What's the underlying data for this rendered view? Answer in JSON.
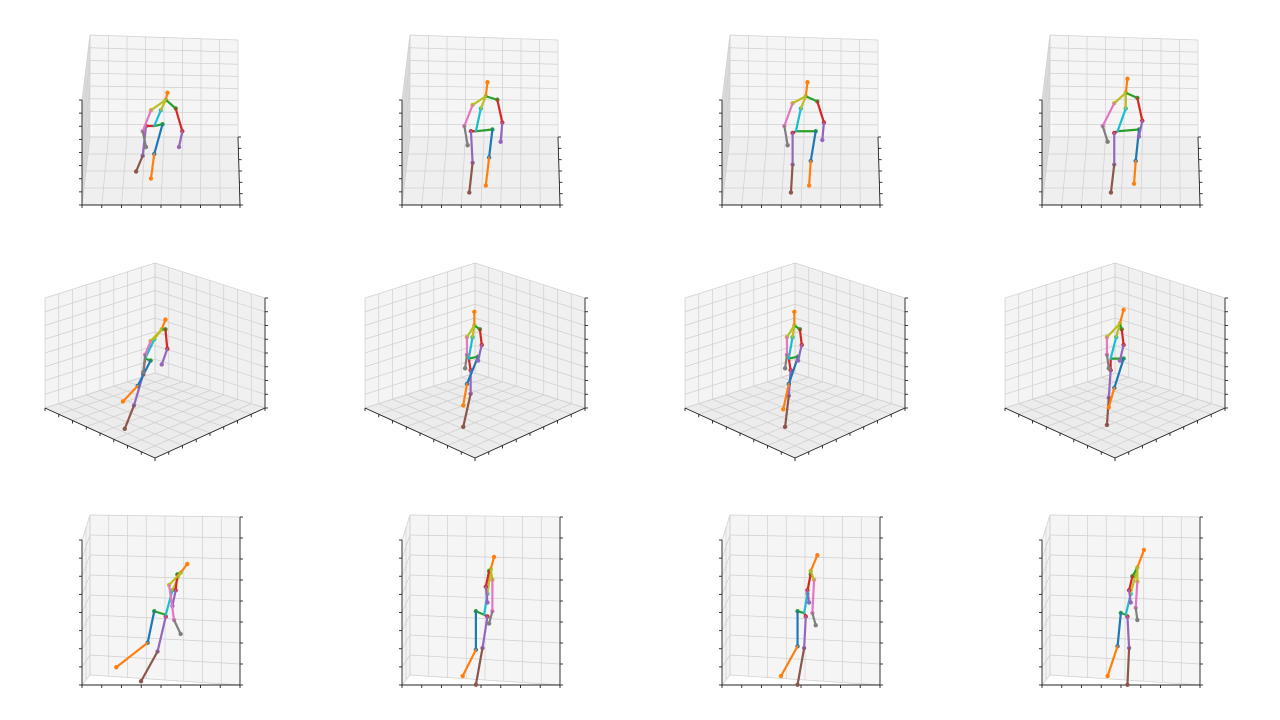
{
  "figure": {
    "rows": 3,
    "cols": 4,
    "views": [
      "front-elevated",
      "isometric",
      "side"
    ]
  },
  "chart_data": {
    "type": "3d-skeleton-grid",
    "title": "",
    "colors": {
      "pane": "#f2f2f2",
      "grid": "#cfcfcf",
      "axis": "#222222",
      "blue": "#1f77b4",
      "orange": "#ff7f0e",
      "green": "#2ca02c",
      "red": "#d62728",
      "purple": "#9467bd",
      "brown": "#8c564b",
      "pink": "#e377c2",
      "gray": "#7f7f7f",
      "olive": "#bcbd22",
      "cyan": "#17becf"
    },
    "bones": [
      {
        "from": "pelvis",
        "to": "r_hip",
        "color": "red"
      },
      {
        "from": "r_hip",
        "to": "r_knee",
        "color": "purple"
      },
      {
        "from": "r_knee",
        "to": "r_ankle",
        "color": "brown"
      },
      {
        "from": "pelvis",
        "to": "l_hip",
        "color": "green"
      },
      {
        "from": "l_hip",
        "to": "l_knee",
        "color": "blue"
      },
      {
        "from": "l_knee",
        "to": "l_ankle",
        "color": "orange"
      },
      {
        "from": "pelvis",
        "to": "spine",
        "color": "cyan"
      },
      {
        "from": "spine",
        "to": "neck",
        "color": "olive"
      },
      {
        "from": "neck",
        "to": "head",
        "color": "orange"
      },
      {
        "from": "neck",
        "to": "l_shoulder",
        "color": "green"
      },
      {
        "from": "l_shoulder",
        "to": "l_elbow",
        "color": "red"
      },
      {
        "from": "l_elbow",
        "to": "l_wrist",
        "color": "purple"
      },
      {
        "from": "neck",
        "to": "r_shoulder",
        "color": "olive"
      },
      {
        "from": "r_shoulder",
        "to": "r_elbow",
        "color": "pink"
      },
      {
        "from": "r_elbow",
        "to": "r_wrist",
        "color": "gray"
      }
    ],
    "panels": [
      {
        "row": 0,
        "col": 0,
        "view": "front-elevated",
        "joints": {
          "head": [
            0.53,
            0.33
          ],
          "neck": [
            0.52,
            0.37
          ],
          "spine": [
            0.49,
            0.43
          ],
          "pelvis": [
            0.45,
            0.52
          ],
          "l_hip": [
            0.5,
            0.51
          ],
          "l_knee": [
            0.45,
            0.68
          ],
          "l_ankle": [
            0.43,
            0.82
          ],
          "r_hip": [
            0.4,
            0.52
          ],
          "r_knee": [
            0.38,
            0.69
          ],
          "r_ankle": [
            0.34,
            0.78
          ],
          "l_shoulder": [
            0.58,
            0.42
          ],
          "l_elbow": [
            0.62,
            0.55
          ],
          "l_wrist": [
            0.6,
            0.64
          ],
          "r_shoulder": [
            0.43,
            0.43
          ],
          "r_elbow": [
            0.38,
            0.55
          ],
          "r_wrist": [
            0.4,
            0.64
          ]
        }
      },
      {
        "row": 0,
        "col": 1,
        "view": "front-elevated",
        "joints": {
          "head": [
            0.53,
            0.27
          ],
          "neck": [
            0.52,
            0.35
          ],
          "spine": [
            0.49,
            0.42
          ],
          "pelvis": [
            0.46,
            0.55
          ],
          "l_hip": [
            0.56,
            0.54
          ],
          "l_knee": [
            0.54,
            0.7
          ],
          "l_ankle": [
            0.52,
            0.86
          ],
          "r_hip": [
            0.43,
            0.55
          ],
          "r_knee": [
            0.44,
            0.73
          ],
          "r_ankle": [
            0.42,
            0.9
          ],
          "l_shoulder": [
            0.59,
            0.37
          ],
          "l_elbow": [
            0.62,
            0.5
          ],
          "l_wrist": [
            0.61,
            0.61
          ],
          "r_shoulder": [
            0.44,
            0.4
          ],
          "r_elbow": [
            0.39,
            0.52
          ],
          "r_wrist": [
            0.41,
            0.63
          ]
        }
      },
      {
        "row": 0,
        "col": 2,
        "view": "front-elevated",
        "joints": {
          "head": [
            0.53,
            0.27
          ],
          "neck": [
            0.52,
            0.35
          ],
          "spine": [
            0.49,
            0.42
          ],
          "pelvis": [
            0.46,
            0.55
          ],
          "l_hip": [
            0.58,
            0.55
          ],
          "l_knee": [
            0.55,
            0.72
          ],
          "l_ankle": [
            0.54,
            0.86
          ],
          "r_hip": [
            0.44,
            0.56
          ],
          "r_knee": [
            0.44,
            0.74
          ],
          "r_ankle": [
            0.43,
            0.9
          ],
          "l_shoulder": [
            0.59,
            0.38
          ],
          "l_elbow": [
            0.63,
            0.5
          ],
          "l_wrist": [
            0.62,
            0.6
          ],
          "r_shoulder": [
            0.44,
            0.39
          ],
          "r_elbow": [
            0.39,
            0.52
          ],
          "r_wrist": [
            0.41,
            0.63
          ]
        }
      },
      {
        "row": 0,
        "col": 3,
        "view": "front-elevated",
        "joints": {
          "head": [
            0.53,
            0.25
          ],
          "neck": [
            0.52,
            0.33
          ],
          "spine": [
            0.52,
            0.42
          ],
          "pelvis": [
            0.47,
            0.55
          ],
          "l_hip": [
            0.6,
            0.54
          ],
          "l_knee": [
            0.58,
            0.72
          ],
          "l_ankle": [
            0.57,
            0.85
          ],
          "r_hip": [
            0.45,
            0.56
          ],
          "r_knee": [
            0.45,
            0.74
          ],
          "r_ankle": [
            0.43,
            0.9
          ],
          "l_shoulder": [
            0.59,
            0.36
          ],
          "l_elbow": [
            0.62,
            0.49
          ],
          "l_wrist": [
            0.6,
            0.58
          ],
          "r_shoulder": [
            0.45,
            0.39
          ],
          "r_elbow": [
            0.38,
            0.52
          ],
          "r_wrist": [
            0.41,
            0.61
          ]
        }
      },
      {
        "row": 1,
        "col": 0,
        "view": "isometric",
        "joints": {
          "head": [
            0.57,
            0.28
          ],
          "neck": [
            0.55,
            0.33
          ],
          "spine": [
            0.51,
            0.38
          ],
          "pelvis": [
            0.46,
            0.48
          ],
          "l_hip": [
            0.49,
            0.49
          ],
          "l_knee": [
            0.42,
            0.62
          ],
          "l_ankle": [
            0.34,
            0.7
          ],
          "r_hip": [
            0.45,
            0.56
          ],
          "r_knee": [
            0.4,
            0.72
          ],
          "r_ankle": [
            0.35,
            0.84
          ],
          "l_shoulder": [
            0.57,
            0.33
          ],
          "l_elbow": [
            0.58,
            0.43
          ],
          "l_wrist": [
            0.55,
            0.51
          ],
          "r_shoulder": [
            0.49,
            0.39
          ],
          "r_elbow": [
            0.46,
            0.46
          ],
          "r_wrist": [
            0.45,
            0.55
          ]
        }
      },
      {
        "row": 1,
        "col": 1,
        "view": "isometric",
        "joints": {
          "head": [
            0.51,
            0.24
          ],
          "neck": [
            0.51,
            0.31
          ],
          "spine": [
            0.5,
            0.37
          ],
          "pelvis": [
            0.48,
            0.48
          ],
          "l_hip": [
            0.53,
            0.47
          ],
          "l_knee": [
            0.47,
            0.61
          ],
          "l_ankle": [
            0.45,
            0.72
          ],
          "r_hip": [
            0.49,
            0.54
          ],
          "r_knee": [
            0.49,
            0.66
          ],
          "r_ankle": [
            0.45,
            0.83
          ],
          "l_shoulder": [
            0.54,
            0.33
          ],
          "l_elbow": [
            0.55,
            0.41
          ],
          "l_wrist": [
            0.53,
            0.49
          ],
          "r_shoulder": [
            0.47,
            0.37
          ],
          "r_elbow": [
            0.47,
            0.46
          ],
          "r_wrist": [
            0.46,
            0.53
          ]
        }
      },
      {
        "row": 1,
        "col": 2,
        "view": "isometric",
        "joints": {
          "head": [
            0.51,
            0.24
          ],
          "neck": [
            0.51,
            0.31
          ],
          "spine": [
            0.5,
            0.37
          ],
          "pelvis": [
            0.48,
            0.48
          ],
          "l_hip": [
            0.53,
            0.47
          ],
          "l_knee": [
            0.48,
            0.61
          ],
          "l_ankle": [
            0.45,
            0.74
          ],
          "r_hip": [
            0.49,
            0.54
          ],
          "r_knee": [
            0.48,
            0.67
          ],
          "r_ankle": [
            0.46,
            0.83
          ],
          "l_shoulder": [
            0.54,
            0.33
          ],
          "l_elbow": [
            0.55,
            0.41
          ],
          "l_wrist": [
            0.53,
            0.49
          ],
          "r_shoulder": [
            0.47,
            0.37
          ],
          "r_elbow": [
            0.47,
            0.46
          ],
          "r_wrist": [
            0.46,
            0.53
          ]
        }
      },
      {
        "row": 1,
        "col": 3,
        "view": "isometric",
        "joints": {
          "head": [
            0.56,
            0.23
          ],
          "neck": [
            0.54,
            0.3
          ],
          "spine": [
            0.52,
            0.37
          ],
          "pelvis": [
            0.49,
            0.48
          ],
          "l_hip": [
            0.56,
            0.48
          ],
          "l_knee": [
            0.51,
            0.63
          ],
          "l_ankle": [
            0.48,
            0.73
          ],
          "r_hip": [
            0.49,
            0.54
          ],
          "r_knee": [
            0.48,
            0.68
          ],
          "r_ankle": [
            0.47,
            0.82
          ],
          "l_shoulder": [
            0.55,
            0.33
          ],
          "l_elbow": [
            0.56,
            0.41
          ],
          "l_wrist": [
            0.54,
            0.49
          ],
          "r_shoulder": [
            0.47,
            0.37
          ],
          "r_elbow": [
            0.47,
            0.46
          ],
          "r_wrist": [
            0.48,
            0.53
          ]
        }
      },
      {
        "row": 2,
        "col": 0,
        "view": "side",
        "joints": {
          "head": [
            0.65,
            0.28
          ],
          "neck": [
            0.61,
            0.33
          ],
          "spine": [
            0.56,
            0.43
          ],
          "pelvis": [
            0.52,
            0.57
          ],
          "l_hip": [
            0.45,
            0.55
          ],
          "l_knee": [
            0.41,
            0.73
          ],
          "l_ankle": [
            0.22,
            0.87
          ],
          "r_hip": [
            0.52,
            0.58
          ],
          "r_knee": [
            0.47,
            0.78
          ],
          "r_ankle": [
            0.37,
            0.95
          ],
          "l_shoulder": [
            0.59,
            0.34
          ],
          "l_elbow": [
            0.58,
            0.43
          ],
          "l_wrist": [
            0.56,
            0.52
          ],
          "r_shoulder": [
            0.54,
            0.4
          ],
          "r_elbow": [
            0.57,
            0.6
          ],
          "r_wrist": [
            0.61,
            0.68
          ]
        }
      },
      {
        "row": 2,
        "col": 1,
        "view": "side",
        "joints": {
          "head": [
            0.57,
            0.24
          ],
          "neck": [
            0.55,
            0.31
          ],
          "spine": [
            0.53,
            0.45
          ],
          "pelvis": [
            0.51,
            0.57
          ],
          "l_hip": [
            0.46,
            0.55
          ],
          "l_knee": [
            0.46,
            0.77
          ],
          "l_ankle": [
            0.38,
            0.92
          ],
          "r_hip": [
            0.53,
            0.58
          ],
          "r_knee": [
            0.5,
            0.76
          ],
          "r_ankle": [
            0.46,
            0.97
          ],
          "l_shoulder": [
            0.54,
            0.32
          ],
          "l_elbow": [
            0.52,
            0.41
          ],
          "l_wrist": [
            0.53,
            0.5
          ],
          "r_shoulder": [
            0.56,
            0.37
          ],
          "r_elbow": [
            0.56,
            0.55
          ],
          "r_wrist": [
            0.54,
            0.62
          ]
        }
      },
      {
        "row": 2,
        "col": 2,
        "view": "side",
        "joints": {
          "head": [
            0.59,
            0.23
          ],
          "neck": [
            0.55,
            0.32
          ],
          "spine": [
            0.53,
            0.45
          ],
          "pelvis": [
            0.51,
            0.56
          ],
          "l_hip": [
            0.47,
            0.55
          ],
          "l_knee": [
            0.47,
            0.75
          ],
          "l_ankle": [
            0.37,
            0.92
          ],
          "r_hip": [
            0.52,
            0.58
          ],
          "r_knee": [
            0.51,
            0.76
          ],
          "r_ankle": [
            0.47,
            0.97
          ],
          "l_shoulder": [
            0.55,
            0.34
          ],
          "l_elbow": [
            0.53,
            0.43
          ],
          "l_wrist": [
            0.54,
            0.5
          ],
          "r_shoulder": [
            0.57,
            0.37
          ],
          "r_elbow": [
            0.56,
            0.56
          ],
          "r_wrist": [
            0.58,
            0.63
          ]
        }
      },
      {
        "row": 2,
        "col": 3,
        "view": "side",
        "joints": {
          "head": [
            0.63,
            0.2
          ],
          "neck": [
            0.59,
            0.3
          ],
          "spine": [
            0.55,
            0.45
          ],
          "pelvis": [
            0.52,
            0.57
          ],
          "l_hip": [
            0.49,
            0.56
          ],
          "l_knee": [
            0.47,
            0.75
          ],
          "l_ankle": [
            0.41,
            0.92
          ],
          "r_hip": [
            0.53,
            0.58
          ],
          "r_knee": [
            0.54,
            0.76
          ],
          "r_ankle": [
            0.53,
            0.97
          ],
          "l_shoulder": [
            0.56,
            0.35
          ],
          "l_elbow": [
            0.54,
            0.43
          ],
          "l_wrist": [
            0.55,
            0.5
          ],
          "r_shoulder": [
            0.59,
            0.38
          ],
          "r_elbow": [
            0.58,
            0.53
          ],
          "r_wrist": [
            0.59,
            0.6
          ]
        }
      }
    ]
  }
}
